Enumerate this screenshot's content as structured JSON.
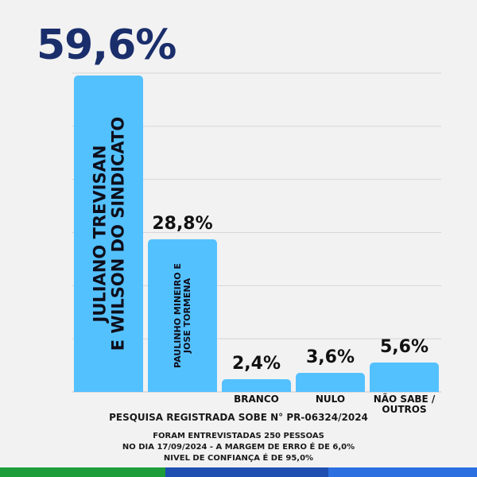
{
  "chart_data": {
    "type": "bar",
    "categories": [
      "JULIANO TREVISAN E WILSON DO SINDICATO",
      "PAULINHO MINEIRO E JOSE TORMENA",
      "BRANCO",
      "NULO",
      "NÃO SABE / OUTROS"
    ],
    "values": [
      59.6,
      28.8,
      2.4,
      3.6,
      5.6
    ],
    "value_labels": [
      "59,6%",
      "28,8%",
      "2,4%",
      "3,6%",
      "5,6%"
    ],
    "bar_text": [
      [
        "JULIANO TREVISAN",
        "E WILSON DO SINDICATO"
      ],
      [
        "PAULINHO MINEIRO E",
        "JOSE TORMENA"
      ]
    ],
    "axis_labels": [
      "",
      "",
      "BRANCO",
      "NULO",
      [
        "NÃO SABE /",
        "OUTROS"
      ]
    ],
    "ylim": [
      0,
      60
    ],
    "grid": true,
    "bar_color": "#54c1ff",
    "highlight_value_color": "#1a2e6b"
  },
  "footer": {
    "registration": "PESQUISA REGISTRADA SOBE N° PR-06324/2024",
    "methodology": [
      "FORAM ENTREVISTADAS 250 PESSOAS",
      "NO DIA 17/09/2024 - A MARGEM DE ERRO É DE 6,0%",
      "NIVEL DE CONFIANÇA É DE 95,0%"
    ]
  },
  "stripe_colors": [
    "#1e9e3a",
    "#1f4fb0",
    "#2b6fe0"
  ]
}
